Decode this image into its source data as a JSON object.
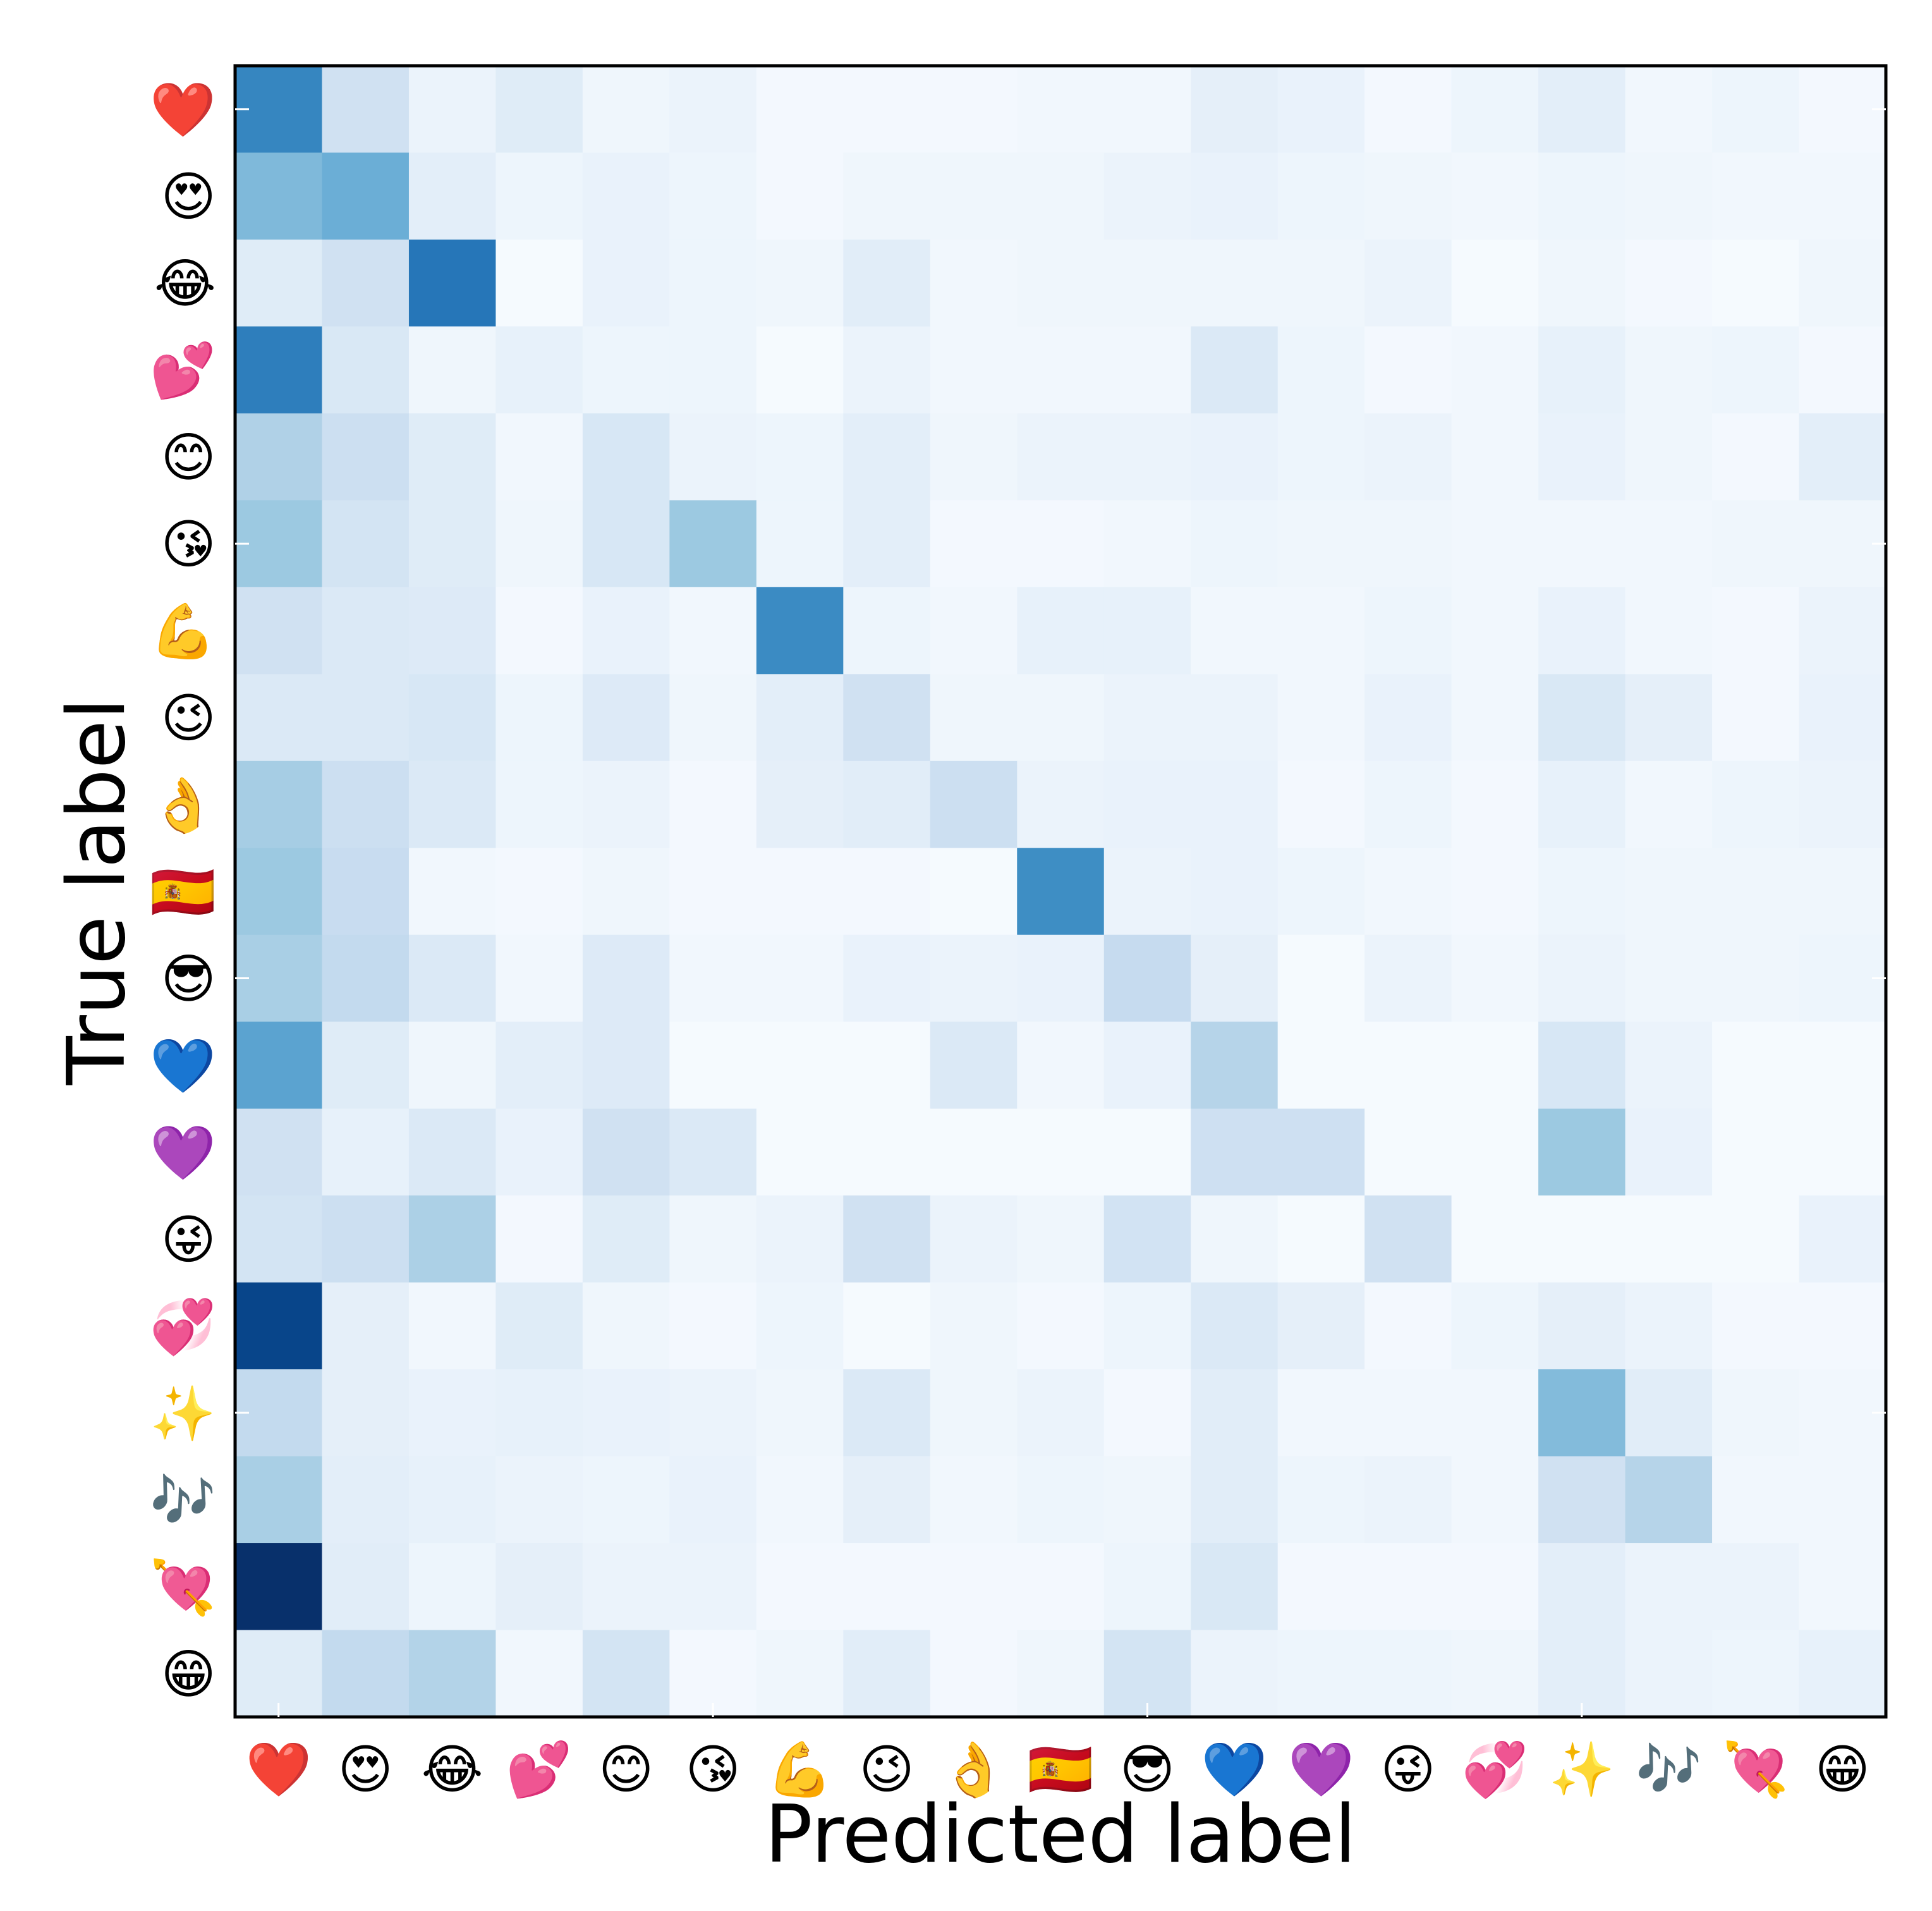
{
  "chart_data": {
    "type": "heatmap",
    "title": "",
    "xlabel": "Predicted label",
    "ylabel": "True label",
    "colormap": "Blues",
    "value_scale": [
      0,
      1
    ],
    "grid": false,
    "x_categories": [
      "❤️",
      "😍",
      "😂",
      "💕",
      "😊",
      "😘",
      "💪",
      "😉",
      "👌",
      "🇪🇸",
      "😎",
      "💙",
      "💜",
      "😜",
      "💞",
      "✨",
      "🎶",
      "💘",
      "😁"
    ],
    "y_categories": [
      "❤️",
      "😍",
      "😂",
      "💕",
      "😊",
      "😘",
      "💪",
      "😉",
      "👌",
      "🇪🇸",
      "😎",
      "💙",
      "💜",
      "😜",
      "💞",
      "✨",
      "🎶",
      "💘",
      "😁"
    ],
    "values": [
      [
        0.67,
        0.2,
        0.06,
        0.12,
        0.04,
        0.06,
        0.02,
        0.02,
        0.02,
        0.03,
        0.03,
        0.09,
        0.07,
        0.02,
        0.05,
        0.1,
        0.03,
        0.05,
        0.02
      ],
      [
        0.45,
        0.5,
        0.1,
        0.05,
        0.07,
        0.05,
        0.02,
        0.04,
        0.04,
        0.04,
        0.06,
        0.07,
        0.05,
        0.04,
        0.03,
        0.05,
        0.04,
        0.03,
        0.03
      ],
      [
        0.12,
        0.2,
        0.73,
        0.01,
        0.07,
        0.05,
        0.04,
        0.11,
        0.03,
        0.04,
        0.04,
        0.04,
        0.04,
        0.06,
        0.01,
        0.04,
        0.02,
        0.01,
        0.04
      ],
      [
        0.7,
        0.15,
        0.04,
        0.08,
        0.05,
        0.05,
        0.01,
        0.06,
        0.03,
        0.03,
        0.03,
        0.14,
        0.05,
        0.02,
        0.03,
        0.08,
        0.04,
        0.05,
        0.02
      ],
      [
        0.32,
        0.22,
        0.12,
        0.03,
        0.16,
        0.06,
        0.05,
        0.1,
        0.04,
        0.06,
        0.06,
        0.07,
        0.05,
        0.06,
        0.03,
        0.07,
        0.04,
        0.02,
        0.1
      ],
      [
        0.38,
        0.18,
        0.12,
        0.04,
        0.16,
        0.38,
        0.05,
        0.1,
        0.02,
        0.02,
        0.03,
        0.05,
        0.04,
        0.04,
        0.03,
        0.03,
        0.03,
        0.04,
        0.04
      ],
      [
        0.2,
        0.14,
        0.13,
        0.02,
        0.07,
        0.03,
        0.65,
        0.05,
        0.03,
        0.08,
        0.08,
        0.03,
        0.03,
        0.05,
        0.03,
        0.07,
        0.03,
        0.02,
        0.06
      ],
      [
        0.14,
        0.14,
        0.16,
        0.05,
        0.13,
        0.04,
        0.1,
        0.2,
        0.04,
        0.04,
        0.06,
        0.06,
        0.03,
        0.07,
        0.03,
        0.15,
        0.09,
        0.02,
        0.07
      ],
      [
        0.35,
        0.22,
        0.14,
        0.05,
        0.06,
        0.02,
        0.09,
        0.11,
        0.22,
        0.06,
        0.07,
        0.07,
        0.02,
        0.05,
        0.02,
        0.08,
        0.03,
        0.05,
        0.06
      ],
      [
        0.38,
        0.24,
        0.03,
        0.02,
        0.04,
        0.02,
        0.02,
        0.02,
        0.01,
        0.64,
        0.06,
        0.07,
        0.05,
        0.03,
        0.02,
        0.05,
        0.04,
        0.04,
        0.04
      ],
      [
        0.34,
        0.26,
        0.14,
        0.03,
        0.13,
        0.03,
        0.03,
        0.07,
        0.06,
        0.07,
        0.25,
        0.09,
        0.01,
        0.06,
        0.03,
        0.06,
        0.04,
        0.04,
        0.05
      ],
      [
        0.55,
        0.12,
        0.04,
        0.1,
        0.13,
        0.01,
        0.01,
        0.01,
        0.14,
        0.03,
        0.07,
        0.3,
        0.01,
        0.01,
        0.01,
        0.16,
        0.06,
        0.01,
        0.01
      ],
      [
        0.2,
        0.08,
        0.14,
        0.07,
        0.2,
        0.14,
        0.01,
        0.01,
        0.01,
        0.01,
        0.01,
        0.21,
        0.21,
        0.01,
        0.01,
        0.38,
        0.07,
        0.01,
        0.01
      ],
      [
        0.18,
        0.22,
        0.33,
        0.02,
        0.12,
        0.04,
        0.06,
        0.2,
        0.06,
        0.04,
        0.19,
        0.04,
        0.01,
        0.2,
        0.01,
        0.01,
        0.01,
        0.01,
        0.07
      ],
      [
        0.92,
        0.09,
        0.03,
        0.12,
        0.04,
        0.02,
        0.05,
        0.01,
        0.04,
        0.02,
        0.05,
        0.14,
        0.09,
        0.02,
        0.05,
        0.09,
        0.06,
        0.02,
        0.02
      ],
      [
        0.26,
        0.09,
        0.07,
        0.08,
        0.07,
        0.06,
        0.04,
        0.14,
        0.04,
        0.06,
        0.02,
        0.11,
        0.03,
        0.03,
        0.03,
        0.44,
        0.11,
        0.04,
        0.03
      ],
      [
        0.34,
        0.1,
        0.08,
        0.06,
        0.05,
        0.07,
        0.03,
        0.09,
        0.03,
        0.05,
        0.04,
        0.11,
        0.05,
        0.06,
        0.03,
        0.2,
        0.3,
        0.03,
        0.03
      ],
      [
        1.0,
        0.11,
        0.05,
        0.09,
        0.06,
        0.06,
        0.02,
        0.02,
        0.02,
        0.02,
        0.05,
        0.15,
        0.02,
        0.02,
        0.02,
        0.1,
        0.06,
        0.06,
        0.03
      ],
      [
        0.12,
        0.26,
        0.31,
        0.03,
        0.18,
        0.02,
        0.04,
        0.11,
        0.02,
        0.04,
        0.18,
        0.06,
        0.05,
        0.05,
        0.04,
        0.1,
        0.06,
        0.05,
        0.08
      ]
    ]
  }
}
